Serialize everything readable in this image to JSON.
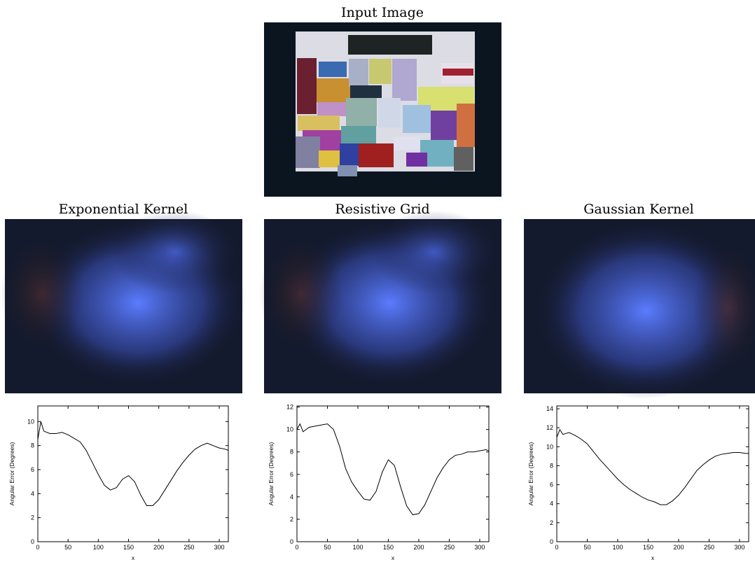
{
  "figure": {
    "input_title": "Input Image",
    "panel_titles": [
      "Exponential Kernel",
      "Resistive Grid",
      "Gaussian Kernel"
    ]
  },
  "chart_data": [
    {
      "type": "line",
      "xlabel": "x",
      "ylabel": "Angular Error (Degrees)",
      "color": "#000000",
      "xlim": [
        0,
        315
      ],
      "xticks": [
        0,
        50,
        100,
        150,
        200,
        250,
        300
      ],
      "ylim": [
        0,
        11.3
      ],
      "yticks": [
        0,
        2,
        4,
        6,
        8,
        10
      ],
      "x": [
        0,
        5,
        10,
        20,
        30,
        40,
        50,
        60,
        70,
        80,
        90,
        100,
        110,
        120,
        130,
        140,
        150,
        160,
        170,
        180,
        190,
        200,
        210,
        220,
        230,
        240,
        250,
        260,
        270,
        280,
        290,
        300,
        310,
        315
      ],
      "values": [
        8.5,
        10.0,
        9.2,
        9.0,
        9.0,
        9.1,
        8.9,
        8.6,
        8.3,
        7.6,
        6.6,
        5.6,
        4.7,
        4.3,
        4.5,
        5.2,
        5.5,
        5.0,
        3.9,
        3.0,
        3.0,
        3.5,
        4.3,
        5.1,
        5.9,
        6.6,
        7.2,
        7.7,
        8.0,
        8.2,
        8.0,
        7.8,
        7.7,
        7.6
      ]
    },
    {
      "type": "line",
      "xlabel": "x",
      "ylabel": "Angular Error (Degrees)",
      "color": "#000000",
      "xlim": [
        0,
        315
      ],
      "xticks": [
        0,
        50,
        100,
        150,
        200,
        250,
        300
      ],
      "ylim": [
        0,
        12.1
      ],
      "yticks": [
        0,
        2,
        4,
        6,
        8,
        10,
        12
      ],
      "x": [
        0,
        5,
        10,
        20,
        30,
        40,
        50,
        60,
        70,
        80,
        90,
        100,
        110,
        120,
        130,
        140,
        150,
        160,
        170,
        180,
        190,
        200,
        210,
        220,
        230,
        240,
        250,
        260,
        270,
        280,
        290,
        300,
        310,
        315
      ],
      "values": [
        10.0,
        10.5,
        9.8,
        10.2,
        10.3,
        10.4,
        10.5,
        10.0,
        8.5,
        6.5,
        5.3,
        4.5,
        3.8,
        3.7,
        4.5,
        6.2,
        7.3,
        6.8,
        4.9,
        3.2,
        2.4,
        2.5,
        3.3,
        4.5,
        5.7,
        6.6,
        7.3,
        7.7,
        7.8,
        8.0,
        8.0,
        8.1,
        8.2,
        8.1
      ]
    },
    {
      "type": "line",
      "xlabel": "x",
      "ylabel": "Angular Error (Degrees)",
      "color": "#000000",
      "xlim": [
        0,
        315
      ],
      "xticks": [
        0,
        50,
        100,
        150,
        200,
        250,
        300
      ],
      "ylim": [
        0,
        14.3
      ],
      "yticks": [
        0,
        2,
        4,
        6,
        8,
        10,
        12,
        14
      ],
      "x": [
        0,
        5,
        10,
        20,
        30,
        40,
        50,
        60,
        70,
        80,
        90,
        100,
        110,
        120,
        130,
        140,
        150,
        160,
        170,
        180,
        190,
        200,
        210,
        220,
        230,
        240,
        250,
        260,
        270,
        280,
        290,
        300,
        310,
        315
      ],
      "values": [
        11.0,
        11.8,
        11.3,
        11.5,
        11.2,
        10.8,
        10.3,
        9.5,
        8.7,
        8.0,
        7.3,
        6.6,
        6.0,
        5.5,
        5.1,
        4.7,
        4.4,
        4.2,
        3.9,
        3.9,
        4.3,
        4.9,
        5.7,
        6.6,
        7.5,
        8.1,
        8.6,
        9.0,
        9.2,
        9.3,
        9.4,
        9.4,
        9.3,
        9.3
      ]
    }
  ]
}
